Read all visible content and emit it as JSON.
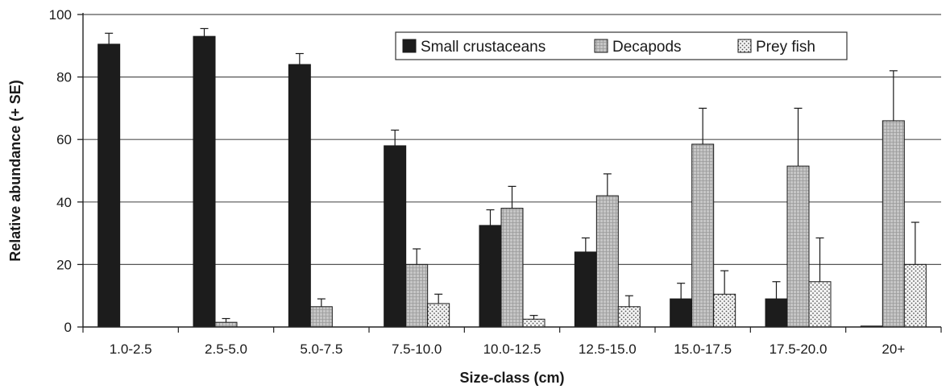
{
  "chart_data": {
    "type": "bar",
    "title": "",
    "xlabel": "Size-class (cm)",
    "ylabel": "Relative abundance (+ SE)",
    "ylim": [
      0,
      100
    ],
    "yticks": [
      "0",
      "20",
      "40",
      "60",
      "80",
      "100"
    ],
    "grid": "horizontal",
    "legend_position": "top-right",
    "categories": [
      "1.0-2.5",
      "2.5-5.0",
      "5.0-7.5",
      "7.5-10.0",
      "10.0-12.5",
      "12.5-15.0",
      "15.0-17.5",
      "17.5-20.0",
      "20+"
    ],
    "series": [
      {
        "name": "Small crustaceans",
        "color": "#1c1c1c",
        "pattern": "solid",
        "values": [
          90.5,
          93,
          84,
          58,
          32.5,
          24,
          9,
          9,
          0.3
        ],
        "errors": [
          3.5,
          2.5,
          3.5,
          5,
          5,
          4.5,
          5,
          5.5,
          0
        ]
      },
      {
        "name": "Decapods",
        "color": "#c4c4c4",
        "pattern": "grid",
        "values": [
          0,
          1.5,
          6.5,
          20,
          38,
          42,
          58.5,
          51.5,
          66
        ],
        "errors": [
          0,
          1.2,
          2.5,
          5,
          7,
          7,
          11.5,
          18.5,
          16
        ]
      },
      {
        "name": "Prey fish",
        "color": "#eeeeee",
        "pattern": "dots",
        "values": [
          0,
          0,
          0,
          7.5,
          2.5,
          6.5,
          10.5,
          14.5,
          20
        ],
        "errors": [
          0,
          0,
          0,
          3,
          1.2,
          3.5,
          7.5,
          14,
          13.5
        ]
      }
    ]
  }
}
